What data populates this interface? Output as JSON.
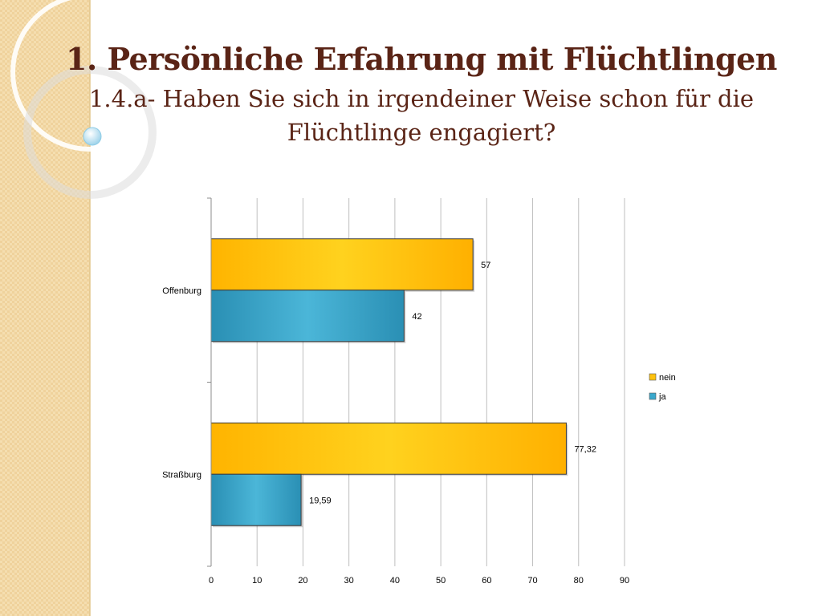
{
  "slide": {
    "title": "1. Persönliche Erfahrung mit Flüchtlingen",
    "subtitle_line1": "1.4.a- Haben Sie sich in irgendeiner Weise schon für die",
    "subtitle_line2": "Flüchtlinge engagiert?"
  },
  "colors": {
    "title": "#5a2416",
    "sidebar": "#f5deb0",
    "nein": "#ffc20e",
    "ja": "#3aa8cc",
    "grid": "#bfbfbf"
  },
  "chart_data": {
    "type": "bar",
    "orientation": "horizontal",
    "categories": [
      "Offenburg",
      "Straßburg"
    ],
    "series": [
      {
        "name": "nein",
        "values": [
          57,
          77.32
        ],
        "labels": [
          "57",
          "77,32"
        ]
      },
      {
        "name": "ja",
        "values": [
          42,
          19.59
        ],
        "labels": [
          "42",
          "19,59"
        ]
      }
    ],
    "xlim": [
      0,
      90
    ],
    "xticks": [
      0,
      10,
      20,
      30,
      40,
      50,
      60,
      70,
      80,
      90
    ],
    "grid": true,
    "legend_position": "right"
  }
}
